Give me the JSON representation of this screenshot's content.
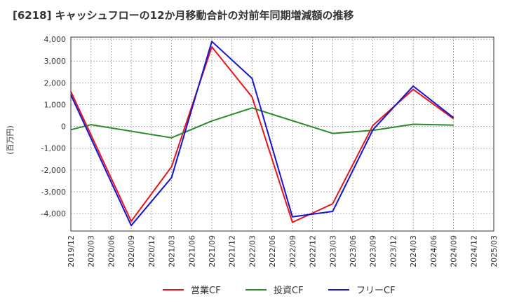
{
  "chart_data": {
    "type": "line",
    "title": "[6218]  キャッシュフローの12か月移動合計の対前年同期増減額の推移",
    "ylabel": "(百万円)",
    "xlabel": "",
    "ylim": [
      -4800,
      4100
    ],
    "yticks": [
      4000,
      3000,
      2000,
      1000,
      0,
      -1000,
      -2000,
      -3000,
      -4000
    ],
    "ytick_labels": [
      "4,000",
      "3,000",
      "2,000",
      "1,000",
      "0",
      "-1,000",
      "-2,000",
      "-3,000",
      "-4,000"
    ],
    "categories": [
      "2019/12",
      "2020/03",
      "2020/06",
      "2020/09",
      "2020/12",
      "2021/03",
      "2021/06",
      "2021/09",
      "2021/12",
      "2022/03",
      "2022/06",
      "2022/09",
      "2022/12",
      "2023/03",
      "2023/06",
      "2023/09",
      "2023/12",
      "2024/03",
      "2024/06",
      "2024/09",
      "2024/12",
      "2025/03"
    ],
    "grid": true,
    "legend_position": "bottom",
    "series": [
      {
        "name": "営業CF",
        "color": "#e8141c",
        "values": [
          1600,
          null,
          null,
          -4350,
          null,
          -1850,
          null,
          3650,
          null,
          1350,
          null,
          -4400,
          null,
          -3550,
          null,
          50,
          null,
          1700,
          null,
          350,
          null,
          null
        ]
      },
      {
        "name": "投資CF",
        "color": "#2a8a2a",
        "values": [
          -150,
          80,
          null,
          null,
          null,
          -520,
          null,
          250,
          null,
          850,
          null,
          null,
          null,
          -320,
          null,
          -180,
          null,
          100,
          null,
          60,
          null,
          null
        ]
      },
      {
        "name": "フリーCF",
        "color": "#1414d2",
        "values": [
          1450,
          null,
          null,
          -4550,
          null,
          -2350,
          null,
          3900,
          null,
          2200,
          null,
          -4150,
          null,
          -3900,
          null,
          -150,
          null,
          1850,
          null,
          400,
          null,
          null
        ]
      }
    ]
  }
}
